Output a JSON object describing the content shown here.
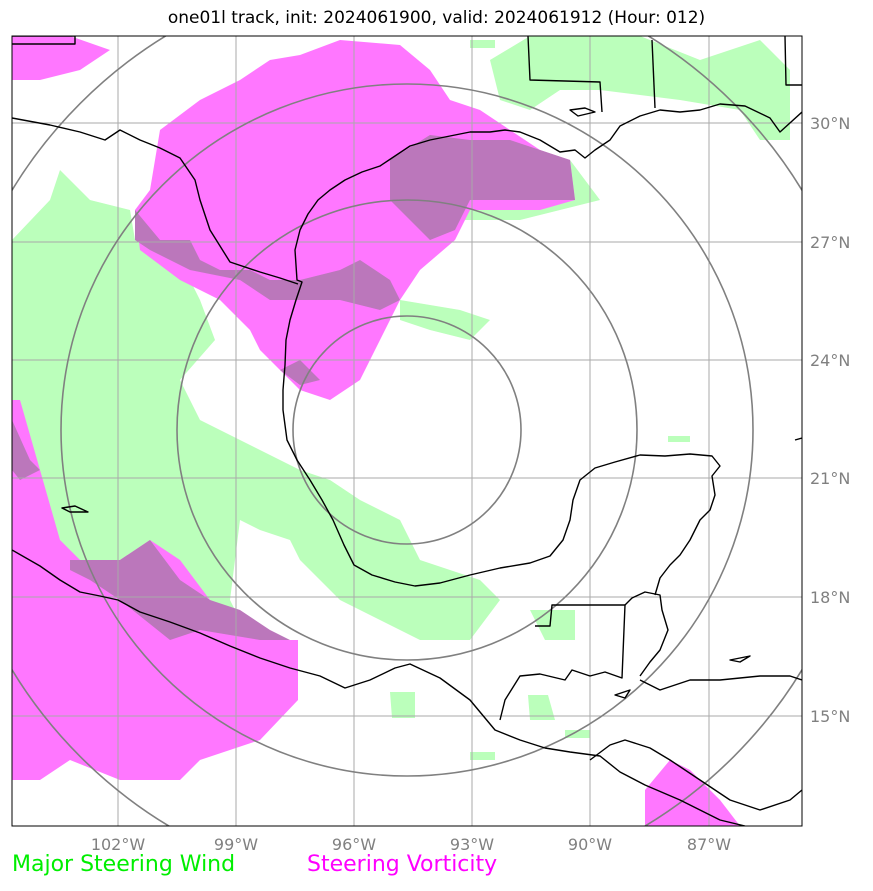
{
  "title": "one01l track, init: 2024061900, valid: 2024061912 (Hour: 012)",
  "lon_ticks": [
    "102°W",
    "99°W",
    "96°W",
    "93°W",
    "90°W",
    "87°W"
  ],
  "lat_ticks": [
    "30°N",
    "27°N",
    "24°N",
    "21°N",
    "18°N",
    "15°N"
  ],
  "legend": {
    "wind": "Major Steering Wind",
    "vorticity": "Steering Vorticity"
  },
  "colors": {
    "wind": "#bbffbb",
    "vorticity": "#ff77ff",
    "overlap": "#bb77bb",
    "grid": "#aaaaaa",
    "rings": "#808080",
    "coast": "#000000"
  }
}
